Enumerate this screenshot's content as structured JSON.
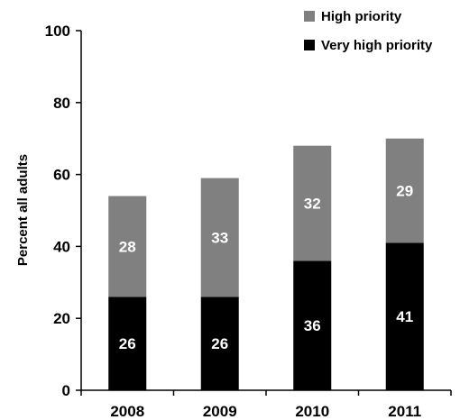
{
  "chart_data": {
    "type": "bar",
    "stacked": true,
    "categories": [
      "2008",
      "2009",
      "2010",
      "2011"
    ],
    "series": [
      {
        "name": "Very high priority",
        "color": "#000000",
        "values": [
          26,
          26,
          36,
          41
        ]
      },
      {
        "name": "High priority",
        "color": "#808080",
        "values": [
          28,
          33,
          32,
          29
        ]
      }
    ],
    "ylabel": "Percent all adults",
    "xlabel": "",
    "ylim": [
      0,
      100
    ],
    "yticks": [
      0,
      20,
      40,
      60,
      80,
      100
    ],
    "legend": {
      "placement": "top-right",
      "order": [
        "High priority",
        "Very high priority"
      ]
    },
    "grid": false
  }
}
